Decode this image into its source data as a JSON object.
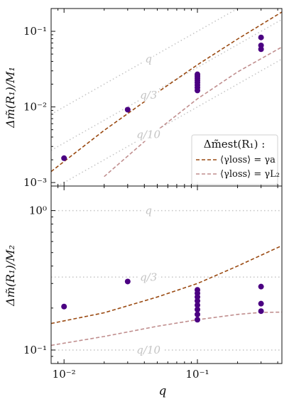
{
  "chart_data": [
    {
      "type": "scatter",
      "panel": "top",
      "ylabel": "Δm̃(R₁)/M₁",
      "yscale": "log",
      "xscale": "log",
      "xlim": [
        0.008,
        0.43
      ],
      "ylim": [
        0.0009,
        0.2
      ],
      "yticks": [
        0.001,
        0.01,
        0.1
      ],
      "ytick_labels": [
        "10⁻³",
        "10⁻²",
        "10⁻¹"
      ],
      "points": [
        {
          "x": 0.01,
          "y": 0.0021
        },
        {
          "x": 0.03,
          "y": 0.0092
        },
        {
          "x": 0.1,
          "y": 0.0165
        },
        {
          "x": 0.1,
          "y": 0.018
        },
        {
          "x": 0.1,
          "y": 0.0195
        },
        {
          "x": 0.1,
          "y": 0.021
        },
        {
          "x": 0.1,
          "y": 0.0225
        },
        {
          "x": 0.1,
          "y": 0.024
        },
        {
          "x": 0.1,
          "y": 0.0255
        },
        {
          "x": 0.1,
          "y": 0.027
        },
        {
          "x": 0.3,
          "y": 0.058
        },
        {
          "x": 0.3,
          "y": 0.065
        },
        {
          "x": 0.3,
          "y": 0.083
        }
      ],
      "series": [
        {
          "name": "⟨γ_loss⟩ = γ_a",
          "color": "#9a4a12",
          "style": "dashed",
          "x": [
            0.008,
            0.02,
            0.05,
            0.1,
            0.2,
            0.43
          ],
          "y": [
            0.0014,
            0.0049,
            0.0155,
            0.036,
            0.079,
            0.18
          ]
        },
        {
          "name": "⟨γ_loss⟩ = γ_L2",
          "color": "#c08e8e",
          "style": "dashed",
          "x": [
            0.02,
            0.05,
            0.1,
            0.2,
            0.43
          ],
          "y": [
            0.0012,
            0.0049,
            0.0128,
            0.029,
            0.062
          ]
        }
      ],
      "reference_lines": [
        {
          "label": "q",
          "factor": 1
        },
        {
          "label": "q/3",
          "factor": 0.3333
        },
        {
          "label": "q/10",
          "factor": 0.1
        }
      ],
      "legend": {
        "title": "Δm̃est(R₁) :",
        "placement": "lower-right",
        "entries": [
          "⟨γloss⟩ = γa",
          "⟨γloss⟩ = γL₂"
        ]
      }
    },
    {
      "type": "scatter",
      "panel": "bottom",
      "ylabel": "Δm̃(R₁)/M₂",
      "xlabel": "q",
      "yscale": "log",
      "xscale": "log",
      "xlim": [
        0.008,
        0.43
      ],
      "ylim": [
        0.08,
        1.5
      ],
      "yticks": [
        0.1,
        1.0
      ],
      "ytick_labels": [
        "10⁻¹",
        "10⁰"
      ],
      "xticks": [
        0.01,
        0.1
      ],
      "xtick_labels": [
        "10⁻²",
        "10⁻¹"
      ],
      "points": [
        {
          "x": 0.01,
          "y": 0.205
        },
        {
          "x": 0.03,
          "y": 0.31
        },
        {
          "x": 0.1,
          "y": 0.165
        },
        {
          "x": 0.1,
          "y": 0.18
        },
        {
          "x": 0.1,
          "y": 0.195
        },
        {
          "x": 0.1,
          "y": 0.21
        },
        {
          "x": 0.1,
          "y": 0.225
        },
        {
          "x": 0.1,
          "y": 0.24
        },
        {
          "x": 0.1,
          "y": 0.255
        },
        {
          "x": 0.1,
          "y": 0.27
        },
        {
          "x": 0.3,
          "y": 0.19
        },
        {
          "x": 0.3,
          "y": 0.215
        },
        {
          "x": 0.3,
          "y": 0.285
        }
      ],
      "series": [
        {
          "name": "⟨γ_loss⟩ = γ_a",
          "color": "#9a4a12",
          "style": "dashed",
          "x": [
            0.008,
            0.02,
            0.05,
            0.1,
            0.2,
            0.43
          ],
          "y": [
            0.155,
            0.185,
            0.24,
            0.3,
            0.4,
            0.56
          ]
        },
        {
          "name": "⟨γ_loss⟩ = γ_L2",
          "color": "#c08e8e",
          "style": "dashed",
          "x": [
            0.008,
            0.02,
            0.05,
            0.1,
            0.2,
            0.3,
            0.43
          ],
          "y": [
            0.108,
            0.125,
            0.148,
            0.165,
            0.18,
            0.186,
            0.187
          ]
        }
      ],
      "reference_lines": [
        {
          "label": "q",
          "y": 1.0
        },
        {
          "label": "q/3",
          "y": 0.3333
        },
        {
          "label": "q/10",
          "y": 0.1
        }
      ]
    }
  ],
  "colors": {
    "points": "#4b0082",
    "gamma_a": "#9a4a12",
    "gamma_L2": "#c08e8e",
    "reference": "#c4c4c4"
  }
}
